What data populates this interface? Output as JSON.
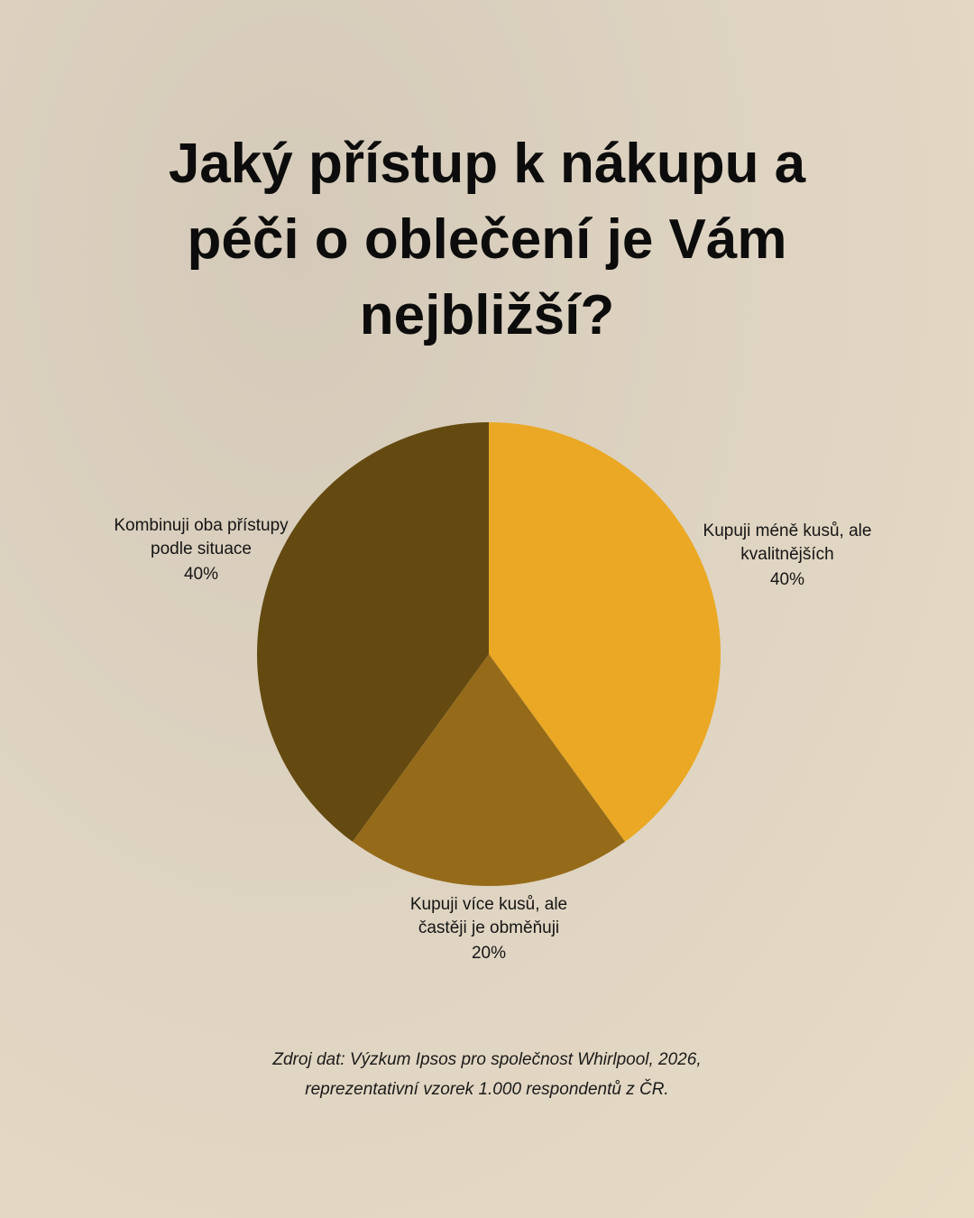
{
  "chart_data": {
    "type": "pie",
    "title": "Jaký přístup k nákupu a péči o oblečení je Vám nejbližší?",
    "categories": [
      "Kupuji méně kusů, ale kvalitnějších",
      "Kupuji více kusů, ale častěji je obměňuji",
      "Kombinuji oba přístupy podle situace"
    ],
    "values": [
      40,
      20,
      40
    ],
    "value_labels": [
      "40%",
      "20%",
      "40%"
    ],
    "colors": [
      "#eaa824",
      "#956b1a",
      "#644a10"
    ],
    "source": "Zdroj dat: Výzkum Ipsos pro společnost Whirlpool, 2026, reprezentativní vzorek 1.000 respondentů z ČR."
  }
}
